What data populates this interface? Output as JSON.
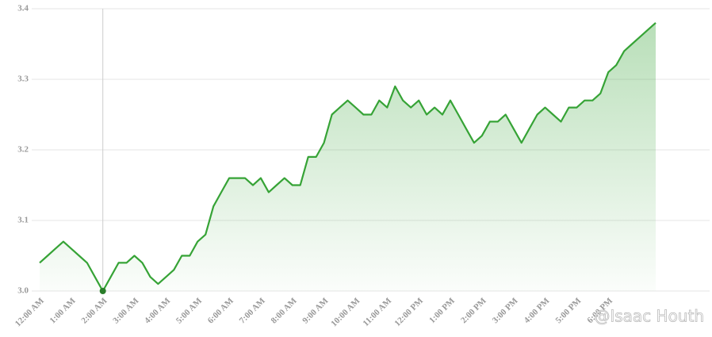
{
  "chart_data": {
    "type": "area",
    "categories": [
      "12:00 AM",
      null,
      null,
      null,
      "1:00 AM",
      null,
      null,
      null,
      "2:00 AM",
      null,
      null,
      null,
      "3:00 AM",
      null,
      null,
      null,
      "4:00 AM",
      null,
      null,
      null,
      "5:00 AM",
      null,
      null,
      null,
      "6:00 AM",
      null,
      null,
      null,
      "7:00 AM",
      null,
      null,
      null,
      "8:00 AM",
      null,
      null,
      null,
      "9:00 AM",
      null,
      null,
      null,
      "10:00 AM",
      null,
      null,
      null,
      "11:00 AM",
      null,
      null,
      null,
      "12:00 PM",
      null,
      null,
      null,
      "1:00 PM",
      null,
      null,
      null,
      "2:00 PM",
      null,
      null,
      null,
      "3:00 PM",
      null,
      null,
      null,
      "4:00 PM",
      null,
      null,
      null,
      "5:00 PM",
      null,
      null,
      null,
      "6:00 PM",
      null,
      null,
      null,
      null,
      null,
      null
    ],
    "values": [
      3.04,
      3.05,
      3.06,
      3.07,
      3.06,
      3.05,
      3.04,
      3.02,
      3.0,
      3.02,
      3.04,
      3.04,
      3.05,
      3.04,
      3.02,
      3.01,
      3.02,
      3.03,
      3.05,
      3.05,
      3.07,
      3.08,
      3.12,
      3.14,
      3.16,
      3.16,
      3.16,
      3.15,
      3.16,
      3.14,
      3.15,
      3.16,
      3.15,
      3.15,
      3.19,
      3.19,
      3.21,
      3.25,
      3.26,
      3.27,
      3.26,
      3.25,
      3.25,
      3.27,
      3.26,
      3.29,
      3.27,
      3.26,
      3.27,
      3.25,
      3.26,
      3.25,
      3.27,
      3.25,
      3.23,
      3.21,
      3.22,
      3.24,
      3.24,
      3.25,
      3.23,
      3.21,
      3.23,
      3.25,
      3.26,
      3.25,
      3.24,
      3.26,
      3.26,
      3.27,
      3.27,
      3.28,
      3.31,
      3.32,
      3.34,
      3.35,
      3.36,
      3.37,
      3.38
    ],
    "color": "#36a336",
    "ylim": [
      3.0,
      3.4
    ],
    "yticks": [
      {
        "value": 3,
        "label": "3.0"
      },
      3.1,
      3.2,
      3.3,
      3.4
    ],
    "grid": true,
    "highlight_index": 8,
    "watermark": "@Isaac Houth"
  }
}
